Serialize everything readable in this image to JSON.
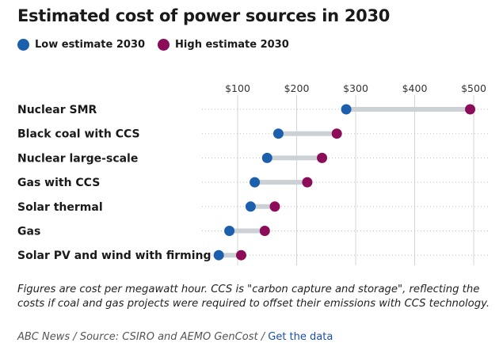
{
  "header": {
    "title": "Estimated cost of power sources in 2030"
  },
  "legend": {
    "low_label": "Low estimate 2030",
    "high_label": "High estimate 2030",
    "low_color": "#1b5fad",
    "high_color": "#8c0c5a"
  },
  "chart_data": {
    "type": "dumbbell",
    "title": "Estimated cost of power sources in 2030",
    "xlabel": "",
    "ylabel": "",
    "xlim": [
      25,
      520
    ],
    "xticks": [
      100,
      200,
      300,
      400,
      500
    ],
    "xtick_labels": [
      "$100",
      "$200",
      "$300",
      "$400",
      "$500"
    ],
    "categories": [
      "Nuclear SMR",
      "Black coal with CCS",
      "Nuclear large-scale",
      "Gas with CCS",
      "Solar thermal",
      "Gas",
      "Solar PV and wind with firming"
    ],
    "series": [
      {
        "name": "Low estimate 2030",
        "color": "#1b5fad",
        "values": [
          284,
          169,
          150,
          129,
          122,
          86,
          68
        ]
      },
      {
        "name": "High estimate 2030",
        "color": "#8c0c5a",
        "values": [
          494,
          268,
          243,
          218,
          163,
          146,
          106
        ]
      }
    ],
    "connector_color": "#ccd1d6",
    "grid": true,
    "legend_position": "top-left"
  },
  "footer": {
    "note": "Figures are cost per megawatt hour. CCS is \"carbon capture and storage\", reflecting the costs if coal and gas projects were required to offset their emissions with CCS technology.",
    "credit": "ABC News",
    "separator": "/",
    "source_text": "Source: CSIRO and AEMO GenCost",
    "link_text": "Get the data"
  }
}
